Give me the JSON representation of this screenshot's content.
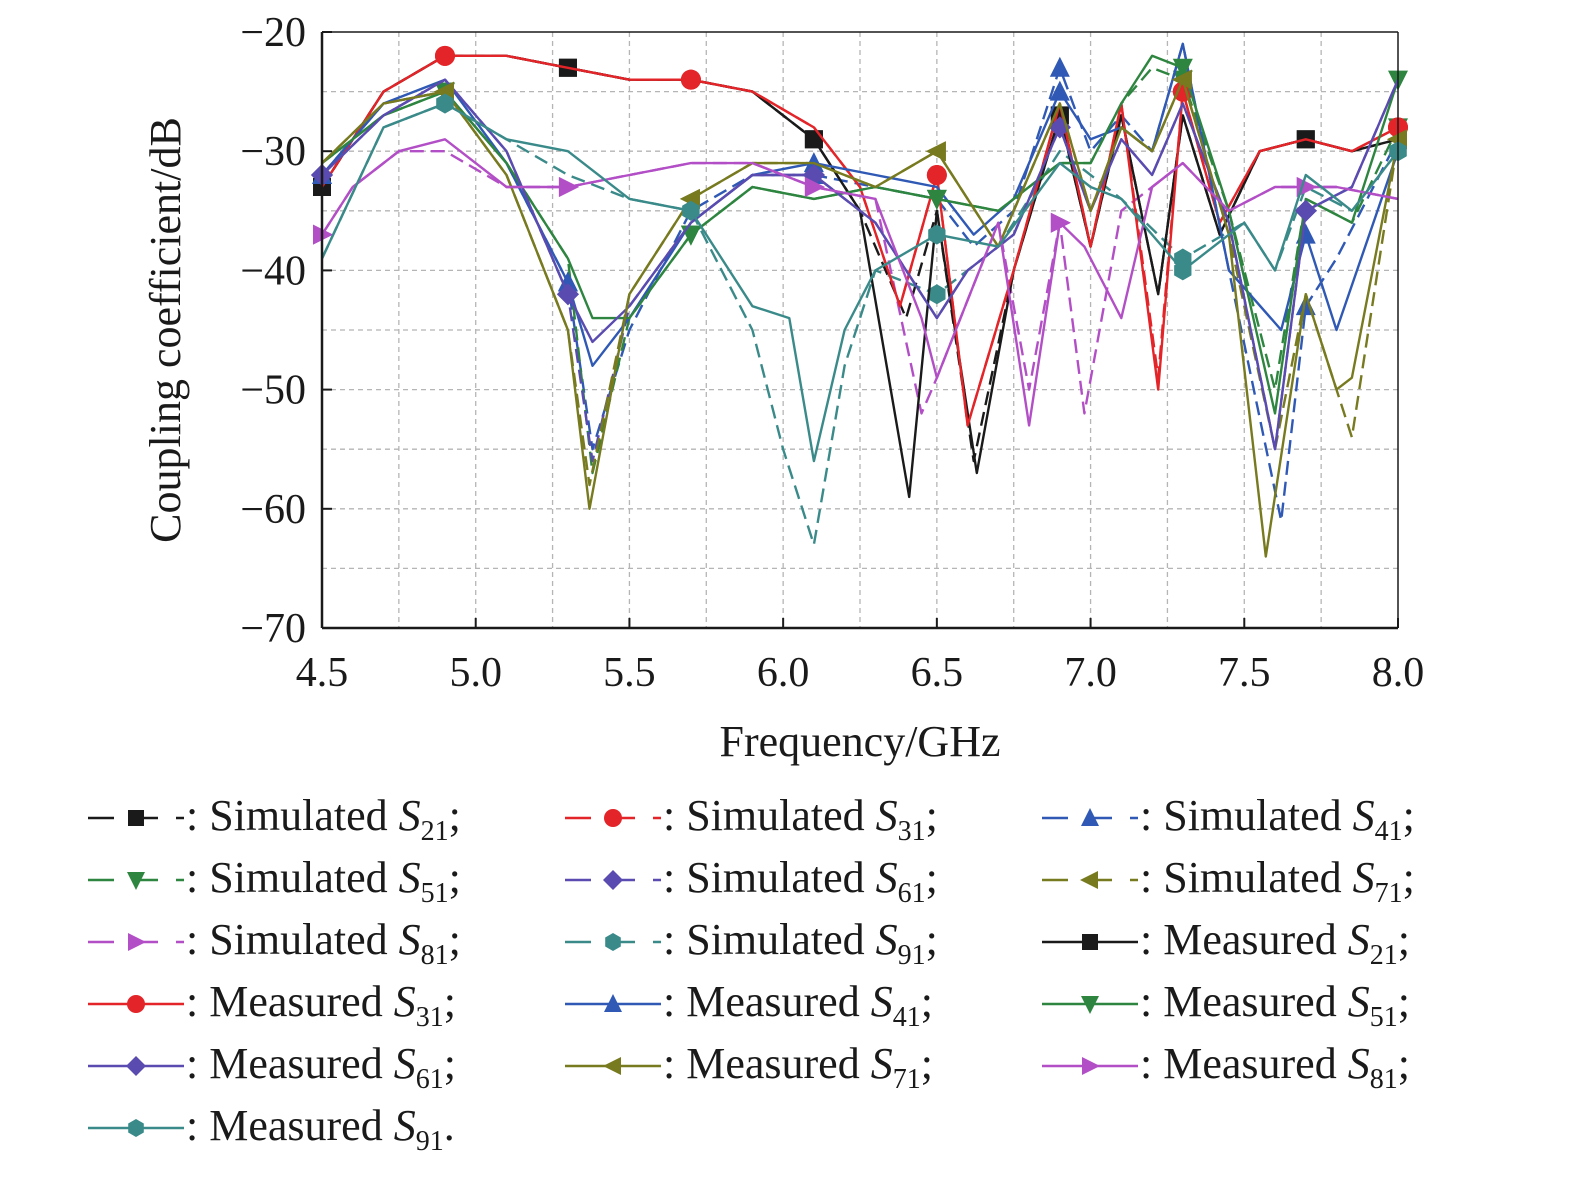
{
  "chart_data": {
    "type": "line",
    "xlabel": "Frequency/GHz",
    "ylabel": "Coupling coefficient/dB",
    "xlim": [
      4.5,
      8.0
    ],
    "ylim": [
      -70,
      -20
    ],
    "xticks": [
      "4.5",
      "5.0",
      "5.5",
      "6.0",
      "6.5",
      "7.0",
      "7.5",
      "8.0"
    ],
    "yticks": [
      "−20",
      "−30",
      "−40",
      "−50",
      "−60",
      "−70"
    ],
    "xtick_values": [
      4.5,
      5.0,
      5.5,
      6.0,
      6.5,
      7.0,
      7.5,
      8.0
    ],
    "ytick_values": [
      -20,
      -30,
      -40,
      -50,
      -60,
      -70
    ],
    "grid": "dashed, minor and major",
    "legend_placement": "below plot, 3 columns",
    "series": [
      {
        "label_prefix": ": Simulated ",
        "label_sub": "21",
        "label_end": ";",
        "color": "#1a1a1a",
        "dash": true,
        "marker": "square",
        "x": [
          4.5,
          4.7,
          4.9,
          5.1,
          5.3,
          5.5,
          5.7,
          5.9,
          6.1,
          6.25,
          6.4,
          6.5,
          6.62,
          6.75,
          6.9,
          7.0,
          7.1,
          7.22,
          7.3,
          7.42,
          7.55,
          7.7,
          7.85,
          8.0
        ],
        "y": [
          -33,
          -25,
          -22,
          -22,
          -23,
          -24,
          -24,
          -25,
          -29,
          -35,
          -44,
          -35,
          -56,
          -40,
          -27,
          -38,
          -27,
          -42,
          -27,
          -37,
          -30,
          -29,
          -30,
          -29
        ]
      },
      {
        "label_prefix": ": Simulated ",
        "label_sub": "31",
        "label_end": ";",
        "color": "#e32428",
        "dash": true,
        "marker": "circle",
        "x": [
          4.5,
          4.7,
          4.9,
          5.1,
          5.3,
          5.5,
          5.7,
          5.9,
          6.1,
          6.25,
          6.38,
          6.5,
          6.6,
          6.75,
          6.9,
          7.0,
          7.1,
          7.22,
          7.3,
          7.42,
          7.55,
          7.7,
          7.85,
          8.0
        ],
        "y": [
          -33,
          -25,
          -22,
          -22,
          -23,
          -24,
          -24,
          -25,
          -28,
          -33,
          -43,
          -32,
          -53,
          -40,
          -26,
          -38,
          -26,
          -49,
          -25,
          -36,
          -30,
          -29,
          -30,
          -28
        ]
      },
      {
        "label_prefix": ": Simulated ",
        "label_sub": "41",
        "label_end": ";",
        "color": "#2f59b4",
        "dash": true,
        "marker": "triangle-up",
        "x": [
          4.5,
          4.7,
          4.9,
          5.1,
          5.3,
          5.38,
          5.5,
          5.7,
          5.9,
          6.1,
          6.3,
          6.5,
          6.62,
          6.75,
          6.9,
          7.0,
          7.1,
          7.2,
          7.3,
          7.45,
          7.62,
          7.7,
          7.8,
          8.0
        ],
        "y": [
          -32,
          -26,
          -25,
          -31,
          -41,
          -55,
          -45,
          -35,
          -32,
          -32,
          -33,
          -34,
          -38,
          -35,
          -23,
          -30,
          -27,
          -30,
          -21,
          -40,
          -61,
          -43,
          -39,
          -29
        ]
      },
      {
        "label_prefix": ": Simulated ",
        "label_sub": "51",
        "label_end": ";",
        "color": "#2e8540",
        "dash": true,
        "marker": "triangle-down",
        "x": [
          4.5,
          4.7,
          4.9,
          5.1,
          5.3,
          5.38,
          5.5,
          5.7,
          5.9,
          6.1,
          6.3,
          6.5,
          6.7,
          6.9,
          7.0,
          7.1,
          7.2,
          7.3,
          7.45,
          7.6,
          7.7,
          7.85,
          8.0
        ],
        "y": [
          -31,
          -27,
          -25,
          -31,
          -39,
          -57,
          -44,
          -37,
          -33,
          -34,
          -33,
          -34,
          -35,
          -31,
          -31,
          -26,
          -23,
          -24,
          -35,
          -50,
          -34,
          -36,
          -28
        ]
      },
      {
        "label_prefix": ": Simulated ",
        "label_sub": "61",
        "label_end": ";",
        "color": "#5a4bb0",
        "dash": true,
        "marker": "diamond",
        "x": [
          4.5,
          4.7,
          4.9,
          5.1,
          5.3,
          5.38,
          5.5,
          5.7,
          5.9,
          6.1,
          6.3,
          6.5,
          6.6,
          6.75,
          6.9,
          7.0,
          7.1,
          7.2,
          7.3,
          7.45,
          7.6,
          7.7,
          7.85,
          8.0
        ],
        "y": [
          -32,
          -27,
          -24,
          -30,
          -42,
          -56,
          -43,
          -36,
          -32,
          -32,
          -36,
          -44,
          -40,
          -37,
          -28,
          -35,
          -29,
          -32,
          -26,
          -36,
          -55,
          -35,
          -33,
          -24
        ]
      },
      {
        "label_prefix": ": Simulated ",
        "label_sub": "71",
        "label_end": ";",
        "color": "#777a1f",
        "dash": true,
        "marker": "triangle-left",
        "x": [
          4.5,
          4.7,
          4.9,
          5.1,
          5.3,
          5.37,
          5.5,
          5.7,
          5.9,
          6.1,
          6.3,
          6.5,
          6.7,
          6.9,
          7.0,
          7.1,
          7.2,
          7.3,
          7.45,
          7.6,
          7.7,
          7.8,
          7.85,
          8.0
        ],
        "y": [
          -31,
          -26,
          -25,
          -32,
          -45,
          -58,
          -42,
          -34,
          -31,
          -31,
          -33,
          -30,
          -38,
          -26,
          -35,
          -28,
          -30,
          -24,
          -37,
          -55,
          -42,
          -50,
          -54,
          -29
        ]
      },
      {
        "label_prefix": ": Simulated ",
        "label_sub": "81",
        "label_end": ";",
        "color": "#b34fc6",
        "dash": true,
        "marker": "triangle-right",
        "x": [
          4.5,
          4.6,
          4.75,
          4.9,
          5.1,
          5.3,
          5.5,
          5.7,
          5.9,
          6.1,
          6.3,
          6.45,
          6.5,
          6.7,
          6.8,
          6.9,
          6.98,
          7.1,
          7.2,
          7.3,
          7.45,
          7.6,
          7.8,
          8.0
        ],
        "y": [
          -37,
          -33,
          -30,
          -30,
          -33,
          -33,
          -32,
          -31,
          -31,
          -33,
          -34,
          -52,
          -49,
          -36,
          -50,
          -36,
          -52,
          -35,
          -33,
          -31,
          -35,
          -33,
          -33,
          -34
        ]
      },
      {
        "label_prefix": ": Simulated ",
        "label_sub": "91",
        "label_end": ";",
        "color": "#3a8a8a",
        "dash": true,
        "marker": "hexagon",
        "x": [
          4.5,
          4.7,
          4.9,
          5.1,
          5.3,
          5.5,
          5.7,
          5.9,
          6.0,
          6.1,
          6.2,
          6.3,
          6.5,
          6.7,
          6.9,
          7.0,
          7.1,
          7.3,
          7.5,
          7.6,
          7.7,
          7.85,
          8.0
        ],
        "y": [
          -39,
          -28,
          -26,
          -29,
          -32,
          -34,
          -35,
          -45,
          -55,
          -63,
          -48,
          -40,
          -42,
          -38,
          -30,
          -32,
          -34,
          -39,
          -36,
          -40,
          -33,
          -35,
          -30
        ]
      },
      {
        "label_prefix": ": Measured ",
        "label_sub": "21",
        "label_end": ";",
        "color": "#1a1a1a",
        "dash": false,
        "marker": "square",
        "x": [
          4.5,
          4.7,
          4.9,
          5.1,
          5.3,
          5.5,
          5.7,
          5.9,
          6.1,
          6.25,
          6.41,
          6.5,
          6.63,
          6.75,
          6.9,
          7.0,
          7.1,
          7.22,
          7.3,
          7.42,
          7.55,
          7.7,
          7.85,
          8.0
        ],
        "y": [
          -33,
          -25,
          -22,
          -22,
          -23,
          -24,
          -24,
          -25,
          -29,
          -35,
          -59,
          -35,
          -57,
          -40,
          -27,
          -38,
          -27,
          -42,
          -27,
          -37,
          -30,
          -29,
          -30,
          -29
        ]
      },
      {
        "label_prefix": ": Measured ",
        "label_sub": "31",
        "label_end": ";",
        "color": "#e32428",
        "dash": false,
        "marker": "circle",
        "x": [
          4.5,
          4.7,
          4.9,
          5.1,
          5.3,
          5.5,
          5.7,
          5.9,
          6.1,
          6.25,
          6.38,
          6.5,
          6.6,
          6.75,
          6.9,
          7.0,
          7.1,
          7.22,
          7.3,
          7.42,
          7.55,
          7.7,
          7.85,
          8.0
        ],
        "y": [
          -33,
          -25,
          -22,
          -22,
          -23,
          -24,
          -24,
          -25,
          -28,
          -33,
          -43,
          -32,
          -53,
          -40,
          -26,
          -38,
          -26,
          -50,
          -25,
          -36,
          -30,
          -29,
          -30,
          -28
        ]
      },
      {
        "label_prefix": ": Measured ",
        "label_sub": "41",
        "label_end": ";",
        "color": "#2f59b4",
        "dash": false,
        "marker": "triangle-up",
        "x": [
          4.5,
          4.7,
          4.9,
          5.1,
          5.3,
          5.38,
          5.5,
          5.7,
          5.9,
          6.1,
          6.3,
          6.5,
          6.62,
          6.75,
          6.9,
          7.0,
          7.1,
          7.2,
          7.3,
          7.45,
          7.62,
          7.7,
          7.8,
          8.0
        ],
        "y": [
          -32,
          -26,
          -24,
          -31,
          -41,
          -48,
          -44,
          -36,
          -32,
          -31,
          -32,
          -33,
          -37,
          -34,
          -25,
          -29,
          -28,
          -30,
          -21,
          -40,
          -45,
          -37,
          -45,
          -30
        ]
      },
      {
        "label_prefix": ": Measured ",
        "label_sub": "51",
        "label_end": ";",
        "color": "#2e8540",
        "dash": false,
        "marker": "triangle-down",
        "x": [
          4.5,
          4.7,
          4.9,
          5.1,
          5.3,
          5.38,
          5.5,
          5.7,
          5.9,
          6.1,
          6.3,
          6.5,
          6.7,
          6.9,
          7.0,
          7.1,
          7.2,
          7.3,
          7.45,
          7.6,
          7.7,
          7.85,
          8.0
        ],
        "y": [
          -31,
          -27,
          -25,
          -31,
          -39,
          -44,
          -44,
          -37,
          -33,
          -34,
          -33,
          -34,
          -35,
          -31,
          -31,
          -26,
          -22,
          -23,
          -35,
          -52,
          -34,
          -36,
          -24
        ]
      },
      {
        "label_prefix": ": Measured ",
        "label_sub": "61",
        "label_end": ";",
        "color": "#5a4bb0",
        "dash": false,
        "marker": "diamond",
        "x": [
          4.5,
          4.7,
          4.9,
          5.1,
          5.3,
          5.38,
          5.5,
          5.7,
          5.9,
          6.1,
          6.3,
          6.5,
          6.6,
          6.75,
          6.9,
          7.0,
          7.1,
          7.2,
          7.3,
          7.45,
          7.6,
          7.7,
          7.85,
          8.0
        ],
        "y": [
          -32,
          -27,
          -24,
          -30,
          -42,
          -46,
          -43,
          -36,
          -32,
          -32,
          -36,
          -44,
          -40,
          -37,
          -28,
          -35,
          -29,
          -32,
          -26,
          -36,
          -55,
          -35,
          -33,
          -24
        ]
      },
      {
        "label_prefix": ": Measured ",
        "label_sub": "71",
        "label_end": ";",
        "color": "#777a1f",
        "dash": false,
        "marker": "triangle-left",
        "x": [
          4.5,
          4.7,
          4.9,
          5.1,
          5.3,
          5.37,
          5.5,
          5.7,
          5.9,
          6.1,
          6.3,
          6.5,
          6.7,
          6.9,
          7.0,
          7.1,
          7.2,
          7.3,
          7.45,
          7.57,
          7.7,
          7.8,
          7.85,
          8.0
        ],
        "y": [
          -31,
          -26,
          -25,
          -32,
          -45,
          -60,
          -42,
          -34,
          -31,
          -31,
          -33,
          -30,
          -38,
          -26,
          -35,
          -28,
          -30,
          -24,
          -37,
          -64,
          -42,
          -50,
          -49,
          -29
        ]
      },
      {
        "label_prefix": ": Measured ",
        "label_sub": "81",
        "label_end": ";",
        "color": "#b34fc6",
        "dash": false,
        "marker": "triangle-right",
        "x": [
          4.5,
          4.6,
          4.75,
          4.9,
          5.1,
          5.3,
          5.5,
          5.7,
          5.9,
          6.1,
          6.3,
          6.45,
          6.5,
          6.7,
          6.8,
          6.9,
          6.98,
          7.1,
          7.2,
          7.3,
          7.45,
          7.6,
          7.8,
          8.0
        ],
        "y": [
          -37,
          -33,
          -30,
          -29,
          -33,
          -33,
          -32,
          -31,
          -31,
          -33,
          -34,
          -44,
          -49,
          -36,
          -53,
          -36,
          -38,
          -44,
          -33,
          -31,
          -35,
          -33,
          -33,
          -34
        ]
      },
      {
        "label_prefix": ": Measured ",
        "label_sub": "91",
        "label_end": ".",
        "color": "#3a8a8a",
        "dash": false,
        "marker": "hexagon",
        "x": [
          4.5,
          4.7,
          4.9,
          5.1,
          5.3,
          5.5,
          5.7,
          5.9,
          6.02,
          6.1,
          6.2,
          6.3,
          6.5,
          6.7,
          6.9,
          7.0,
          7.1,
          7.3,
          7.5,
          7.6,
          7.7,
          7.85,
          8.0
        ],
        "y": [
          -39,
          -28,
          -26,
          -29,
          -30,
          -34,
          -35,
          -43,
          -44,
          -56,
          -45,
          -40,
          -37,
          -38,
          -31,
          -33,
          -34,
          -40,
          -36,
          -40,
          -32,
          -35,
          -30
        ]
      }
    ],
    "marker_x": [
      4.5,
      4.9,
      5.3,
      5.7,
      6.1,
      6.5,
      6.9,
      7.3,
      7.7,
      8.0
    ]
  }
}
